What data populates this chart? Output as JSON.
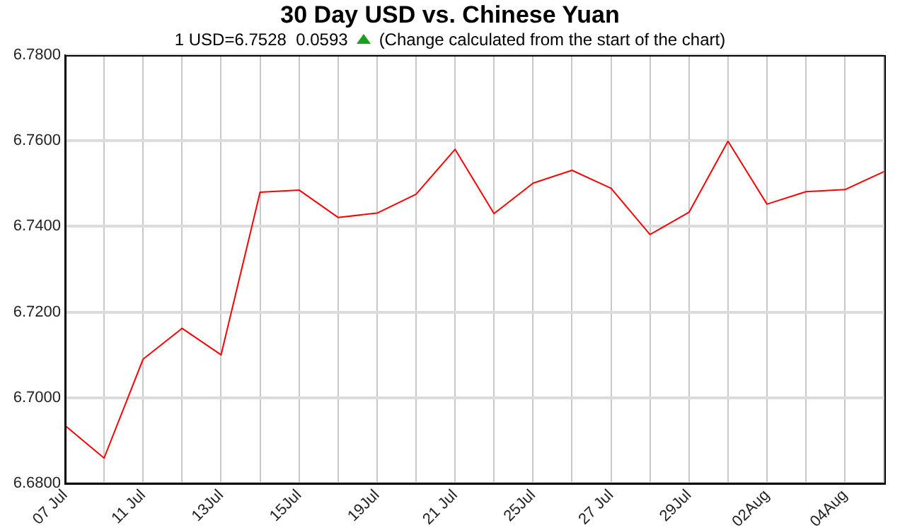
{
  "chart_data": {
    "type": "line",
    "title": "30 Day USD vs. Chinese Yuan",
    "subtitle": "1 USD=6.7528  0.0593",
    "annotations": [
      "(Change calculated from the start of the chart)"
    ],
    "categories": [
      "07 Jul",
      null,
      "11 Jul",
      null,
      "13Jul",
      null,
      "15Jul",
      null,
      "19Jul",
      null,
      "21 Jul",
      null,
      "25Jul",
      null,
      "27 Jul",
      null,
      "29Jul",
      null,
      "02Aug",
      null,
      "04Aug",
      null
    ],
    "series": [
      {
        "color": "#ff0000",
        "values": [
          6.6935,
          6.6859,
          6.709,
          6.7162,
          6.71,
          6.748,
          6.7485,
          6.7421,
          6.7431,
          6.7475,
          6.758,
          6.743,
          6.7501,
          6.7531,
          6.7489,
          6.7381,
          6.7433,
          6.7599,
          6.7452,
          6.7481,
          6.7486,
          6.7528
        ]
      }
    ],
    "ylim": [
      6.68,
      6.78
    ],
    "yticks": [
      {
        "value": 6.68,
        "label": "6.6800"
      },
      {
        "value": 6.7,
        "label": "6.7000"
      },
      {
        "value": 6.72,
        "label": "6.7200"
      },
      {
        "value": 6.74,
        "label": "6.7400"
      },
      {
        "value": 6.76,
        "label": "6.7600"
      },
      {
        "value": 6.78,
        "label": "6.7800"
      }
    ],
    "grid": true,
    "legend": false,
    "marker": "none",
    "line_style": "solid"
  }
}
